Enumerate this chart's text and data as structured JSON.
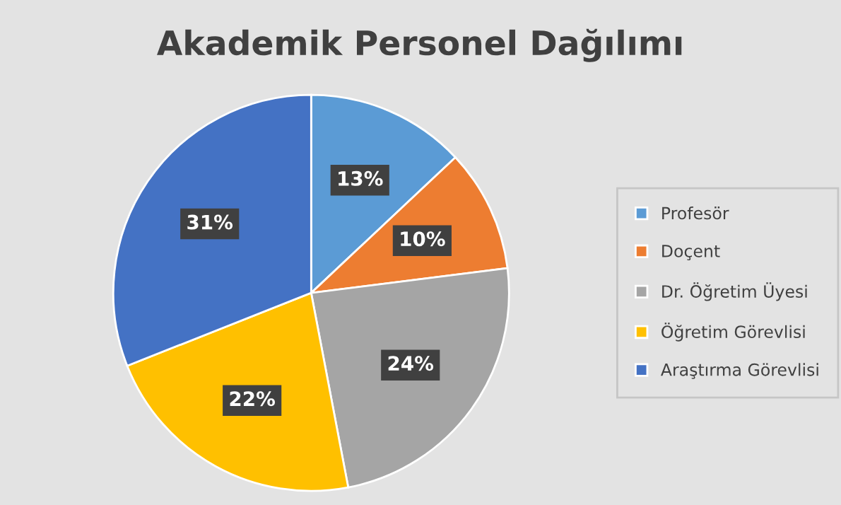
{
  "chart_data": {
    "type": "pie",
    "title": "Akademik Personel Dağılımı",
    "categories": [
      "Profesör",
      "Doçent",
      "Dr. Öğretim Üyesi",
      "Öğretim Görevlisi",
      "Araştırma Görevlisi"
    ],
    "values": [
      13,
      10,
      24,
      22,
      31
    ],
    "value_labels": [
      "13%",
      "10%",
      "24%",
      "22%",
      "31%"
    ],
    "colors": [
      "#5b9bd5",
      "#ed7d31",
      "#a5a5a5",
      "#ffc000",
      "#4472c4"
    ],
    "legend": "right"
  }
}
